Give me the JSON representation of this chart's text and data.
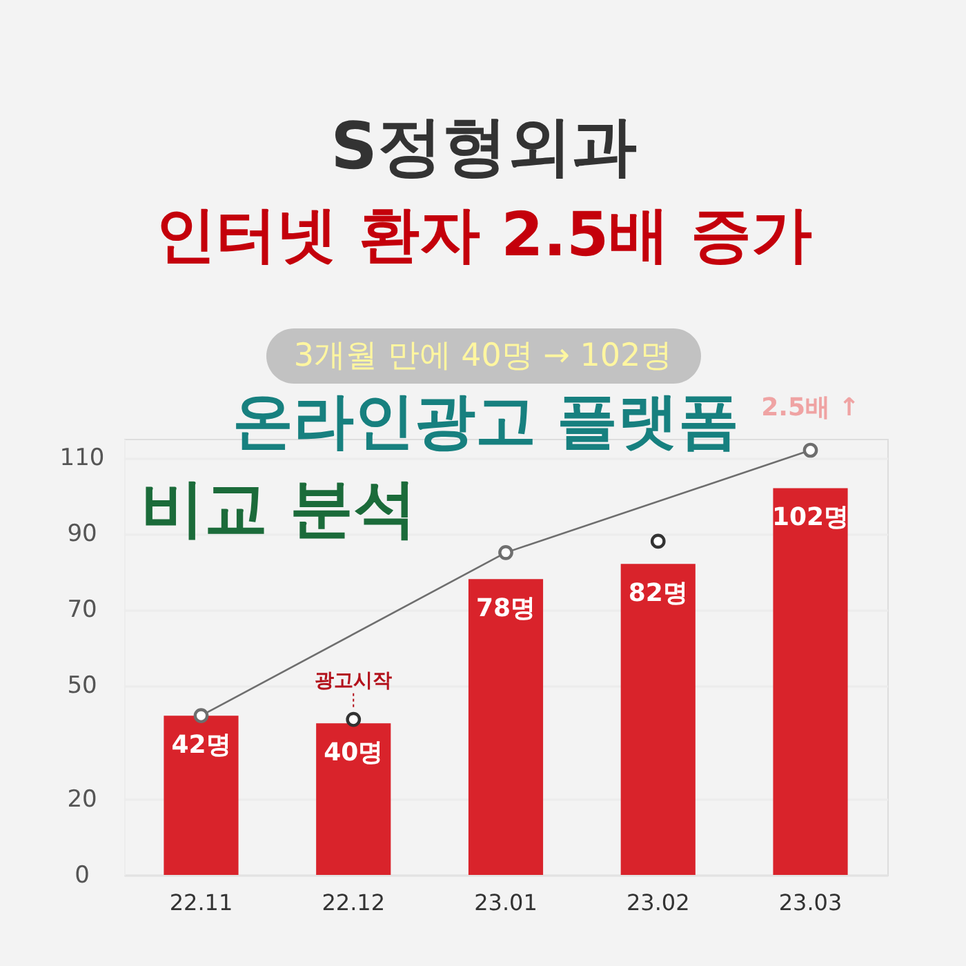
{
  "chart_data": {
    "type": "bar",
    "title": "S정형외과",
    "subtitle": "인터넷 환자 2.5배 증가",
    "categories": [
      "22.11",
      "22.12",
      "23.01",
      "23.02",
      "23.03"
    ],
    "series": [
      {
        "color": "#d9232b",
        "values": [
          42,
          40,
          78,
          82,
          102
        ],
        "value_labels": [
          "42명",
          "40명",
          "78명",
          "82명",
          "102명"
        ]
      },
      {
        "type": "line",
        "color": "#6e6e6e",
        "x": [
          "22.11",
          "23.01",
          "23.03"
        ],
        "values": [
          42,
          85,
          112
        ]
      },
      {
        "type": "scatter",
        "color": "#333333",
        "x": [
          "22.12",
          "23.02"
        ],
        "values": [
          41,
          88
        ]
      }
    ],
    "marker": "circle",
    "ylim": [
      0,
      115
    ],
    "yticks": [
      0,
      20,
      50,
      70,
      90,
      110
    ],
    "grid": "y",
    "annotations": [
      "3개월 만에 40명 → 102명",
      "온라인광고 플랫폼",
      "비교 분석",
      {
        "text": "광고시작",
        "x": "22.12",
        "y": 41
      },
      {
        "text": "2.5배 ↑",
        "x": "23.03",
        "y": 112
      }
    ]
  }
}
